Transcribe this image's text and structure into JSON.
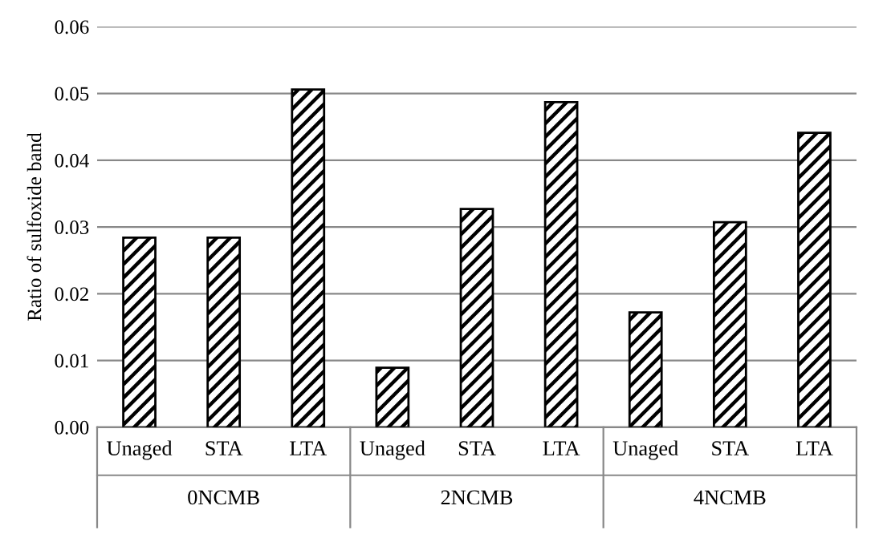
{
  "chart_data": {
    "type": "bar",
    "ylabel": "Ratio of sulfoxide band",
    "categories": [
      "Unaged",
      "STA",
      "LTA",
      "Unaged",
      "STA",
      "LTA",
      "Unaged",
      "STA",
      "LTA"
    ],
    "series": [
      {
        "color": "#000000",
        "values": [
          0.0284,
          0.0284,
          0.0506,
          0.0089,
          0.0327,
          0.0487,
          0.0172,
          0.0307,
          0.0441
        ]
      }
    ],
    "annotations": [
      "0NCMB",
      "2NCMB",
      "4NCMB"
    ],
    "ylim": [
      0,
      0.06
    ],
    "yticks": [
      {
        "value": 0,
        "label": "0.00"
      },
      {
        "value": 0.01,
        "label": "0.01"
      },
      {
        "value": 0.02,
        "label": "0.02"
      },
      {
        "value": 0.03,
        "label": "0.03"
      },
      {
        "value": 0.04,
        "label": "0.04"
      },
      {
        "value": 0.05,
        "label": "0.05"
      },
      {
        "value": 0.06,
        "label": "0.06"
      }
    ],
    "grid": "y",
    "legend": false
  }
}
